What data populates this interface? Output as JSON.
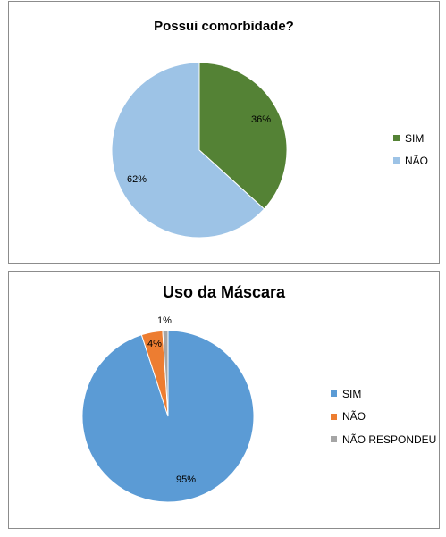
{
  "chart_data": [
    {
      "type": "pie",
      "title": "Possui comorbidade?",
      "categories": [
        "SIM",
        "NÃO"
      ],
      "values": [
        36,
        62
      ],
      "data_labels": [
        "36%",
        "62%"
      ],
      "colors": [
        "#548235",
        "#9DC3E6"
      ],
      "legend": "right"
    },
    {
      "type": "pie",
      "title": "Uso da Máscara",
      "categories": [
        "SIM",
        "NÃO",
        "NÃO RESPONDEU"
      ],
      "values": [
        95,
        4,
        1
      ],
      "data_labels": [
        "95%",
        "4%",
        "1%"
      ],
      "colors": [
        "#5B9BD5",
        "#ED7D31",
        "#A5A5A5"
      ],
      "legend": "right"
    }
  ]
}
